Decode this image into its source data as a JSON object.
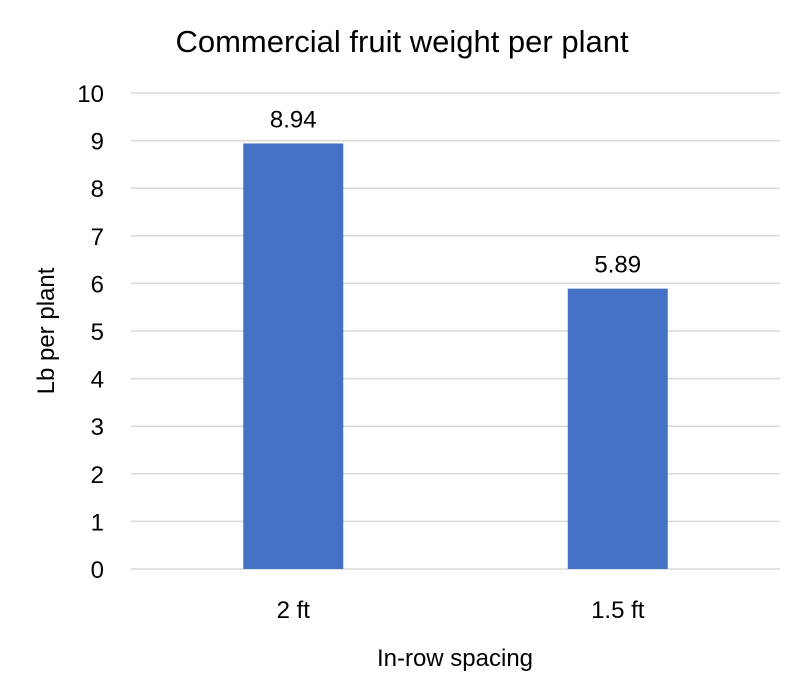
{
  "chart_data": {
    "type": "bar",
    "title": "Commercial fruit weight per plant",
    "xlabel": "In-row spacing",
    "ylabel": "Lb per plant",
    "categories": [
      "2 ft",
      "1.5 ft"
    ],
    "values": [
      8.94,
      5.89
    ],
    "data_labels": [
      "8.94",
      "5.89"
    ],
    "ylim": [
      0,
      10
    ],
    "y_ticks": [
      "0",
      "1",
      "2",
      "3",
      "4",
      "5",
      "6",
      "7",
      "8",
      "9",
      "10"
    ],
    "grid": true,
    "legend": "none",
    "bar_color": "#4472c4",
    "grid_color": "#d9d9d9"
  }
}
